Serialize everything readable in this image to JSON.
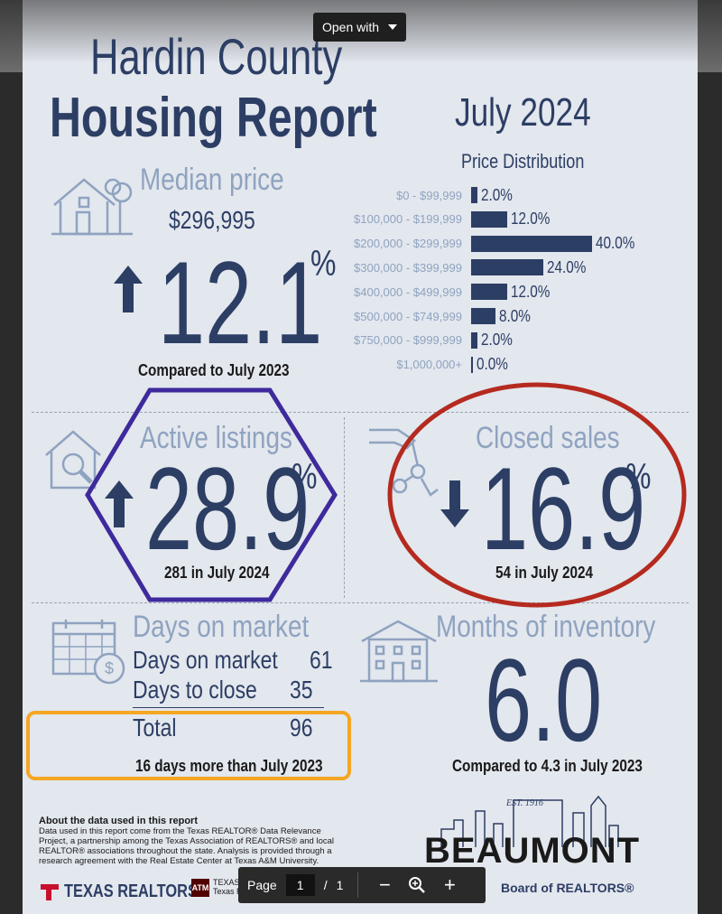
{
  "viewer": {
    "open_with": "Open with",
    "toolbar": {
      "page_label": "Page",
      "current_page": "1",
      "separator": "/",
      "total_pages": "1",
      "zoom_out": "−",
      "zoom_in": "+"
    }
  },
  "report": {
    "title_line1": "Hardin County",
    "title_line2": "Housing Report",
    "date": "July 2024",
    "price_distribution": {
      "title": "Price Distribution",
      "rows": [
        {
          "label": "$0 - $99,999",
          "value": "2.0%",
          "pct": 2.0
        },
        {
          "label": "$100,000 - $199,999",
          "value": "12.0%",
          "pct": 12.0
        },
        {
          "label": "$200,000 - $299,999",
          "value": "40.0%",
          "pct": 40.0
        },
        {
          "label": "$300,000 - $399,999",
          "value": "24.0%",
          "pct": 24.0
        },
        {
          "label": "$400,000 - $499,999",
          "value": "12.0%",
          "pct": 12.0
        },
        {
          "label": "$500,000 - $749,999",
          "value": "8.0%",
          "pct": 8.0
        },
        {
          "label": "$750,000 - $999,999",
          "value": "2.0%",
          "pct": 2.0
        },
        {
          "label": "$1,000,000+",
          "value": "0.0%",
          "pct": 0.0
        }
      ]
    },
    "median": {
      "heading": "Median price",
      "price": "$296,995",
      "change": "12.1",
      "pct_sign": "%",
      "compare": "Compared to July 2023",
      "direction": "up"
    },
    "active": {
      "heading": "Active listings",
      "change": "28.9",
      "pct_sign": "%",
      "sub": "281 in July 2024",
      "direction": "up"
    },
    "closed": {
      "heading": "Closed sales",
      "change": "16.9",
      "pct_sign": "%",
      "sub": "54 in July 2024",
      "direction": "down"
    },
    "dom": {
      "heading": "Days on market",
      "rows": [
        {
          "label": "Days on market",
          "value": "61"
        },
        {
          "label": "Days to close",
          "value": "35"
        }
      ],
      "total_label": "Total",
      "total_value": "96",
      "compare": "16 days more than July 2023"
    },
    "inventory": {
      "heading": "Months of inventory",
      "value": "6.0",
      "compare": "Compared to 4.3 in July 2023"
    },
    "about": {
      "title": "About the data used in this report",
      "text": "Data used in this report come from the Texas REALTOR® Data Relevance Project, a partnership among the Texas Association of REALTORS® and local REALTOR® associations throughout the state. Analysis is provided through a research agreement with the Real Estate Center at Texas A&M University."
    },
    "logos": {
      "texas_realtors": "TEXAS REALTORS",
      "tam_line1": "TEXAS A&M UNIVERSITY",
      "tam_line2": "Texas Real Estate Research Center",
      "beaumont": "BEAUMONT",
      "beaumont_est": "EST. 1916",
      "beaumont_sub": "Board of REALTORS®"
    }
  },
  "colors": {
    "navy": "#2c3e64",
    "muted": "#8fa3c0",
    "hexagon": "#3e2a9c",
    "ellipse": "#b52a1f",
    "highlight": "#f5a623"
  }
}
